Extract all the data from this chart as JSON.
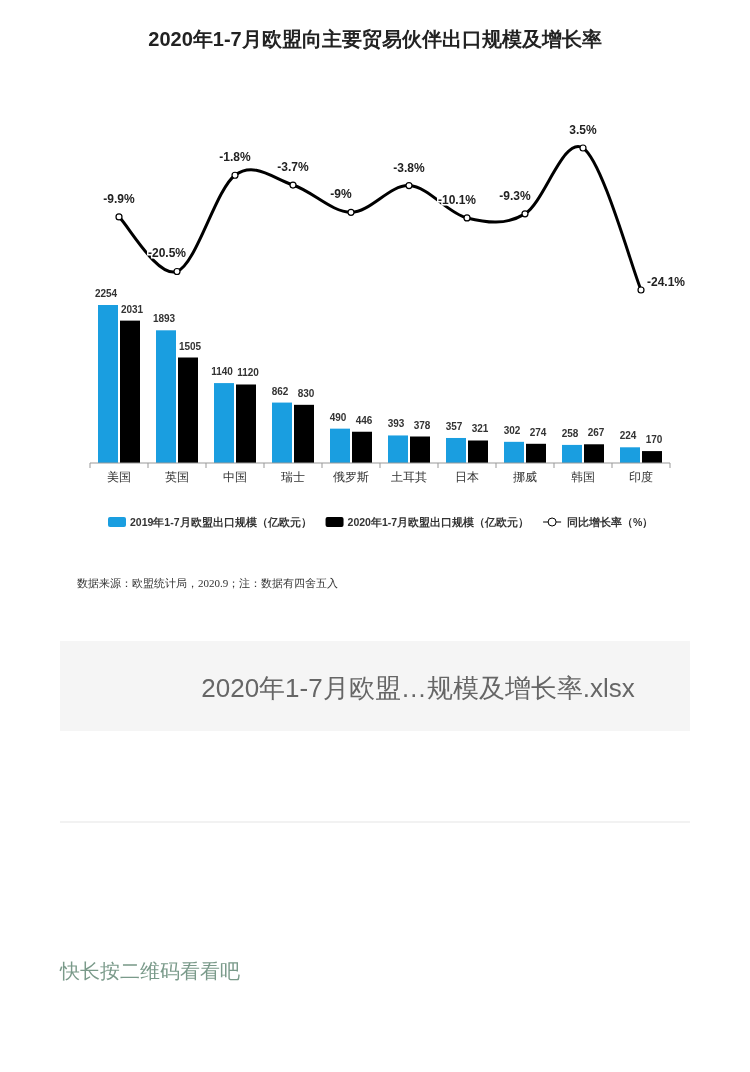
{
  "chart_data": [
    {
      "type": "line",
      "title": "2020年1-7月欧盟向主要贸易伙伴出口规模及增长率",
      "categories": [
        null,
        null,
        null,
        null,
        null,
        null,
        null,
        null,
        null,
        null
      ],
      "series": [
        {
          "name": "同比增长率（%）",
          "color": "#000000",
          "values": [
            -9.9,
            -20.5,
            -1.8,
            -3.7,
            -9,
            -3.8,
            -10.1,
            -9.3,
            3.5,
            -24.1
          ],
          "value_labels": [
            "-9.9%",
            "-20.5%",
            "-1.8%",
            "-3.7%",
            "-9%",
            "-3.8%",
            "-10.1%",
            "-9.3%",
            "3.5%",
            "-24.1%"
          ]
        }
      ],
      "marker": "circle",
      "legend": "bottom",
      "tick_labels": false
    },
    {
      "type": "bar",
      "categories": [
        "美国",
        "英国",
        "中国",
        "瑞士",
        "俄罗斯",
        "土耳其",
        "日本",
        "挪威",
        "韩国",
        "印度"
      ],
      "series": [
        {
          "name": "2019年1-7月欧盟出口规模（亿欧元）",
          "color": "#1a9ee0",
          "values": [
            2254,
            1893,
            1140,
            862,
            490,
            393,
            357,
            302,
            258,
            224
          ]
        },
        {
          "name": "2020年1-7月欧盟出口规模（亿欧元）",
          "color": "#000000",
          "values": [
            2031,
            1505,
            1120,
            830,
            446,
            378,
            321,
            274,
            267,
            170
          ]
        }
      ],
      "data_labels": true,
      "legend": "bottom",
      "tick_labels": "x",
      "annotations": [
        "数据来源：欧盟统计局，2020.9；注：数据有四舍五入",
        "2020年1-7月欧盟…规模及增长率.xlsx",
        "快长按二维码看看吧"
      ]
    }
  ]
}
